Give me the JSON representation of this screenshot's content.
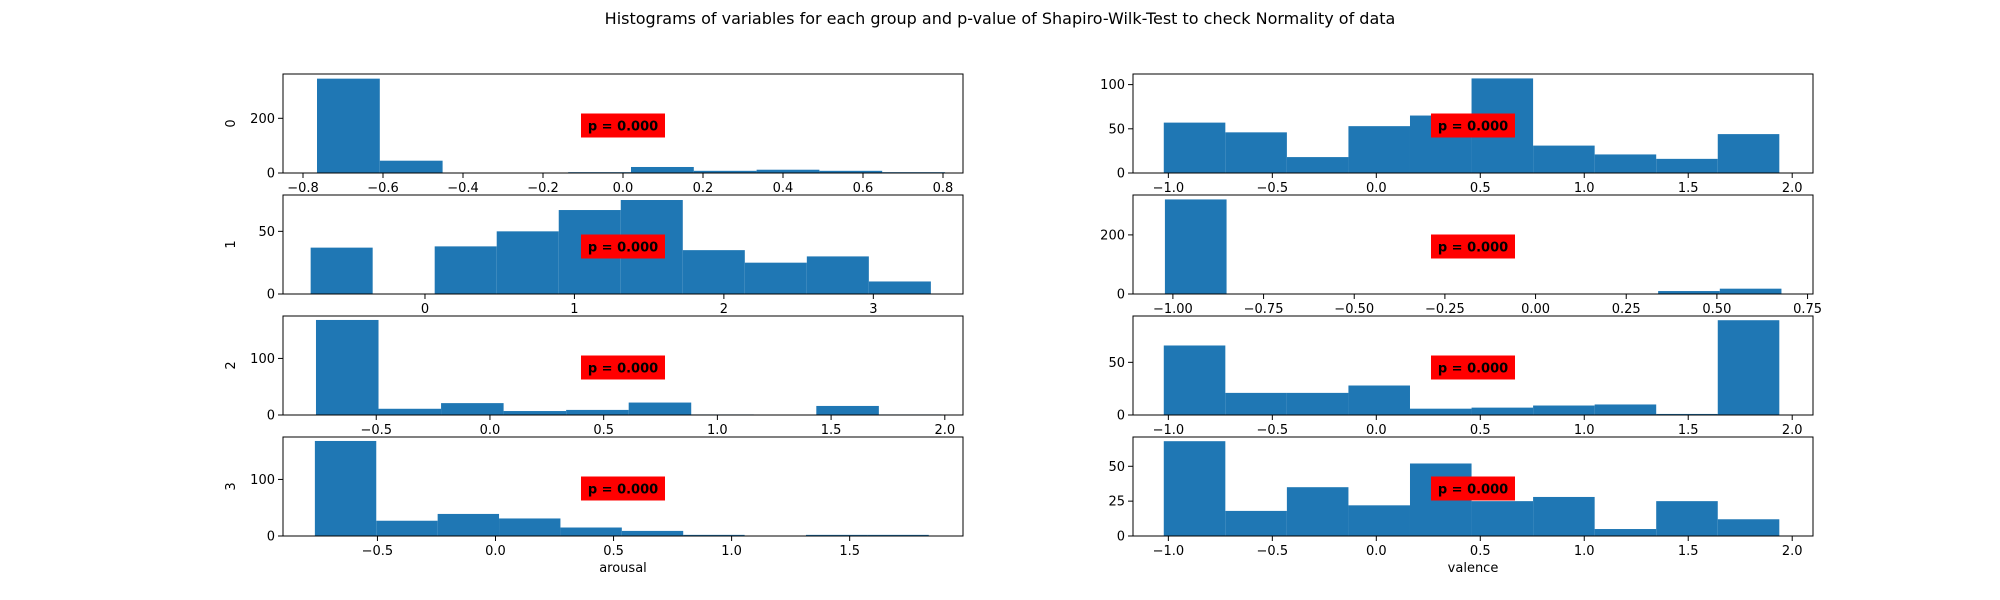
{
  "title": "Histograms of variables for each group and p-value of Shapiro-Wilk-Test to check Normality of data",
  "colors": {
    "bar": "#1f77b4",
    "annotation_bg": "#ff0000",
    "axis": "#000000"
  },
  "chart_data": [
    {
      "type": "bar",
      "row": 0,
      "col": 0,
      "ylabel": "0",
      "xlabel": "",
      "annotation": "p = 0.000",
      "xlim": [
        -0.85,
        0.85
      ],
      "ylim": [
        0,
        362
      ],
      "xticks": [
        -0.8,
        -0.6,
        -0.4,
        -0.2,
        0.0,
        0.2,
        0.4,
        0.6,
        0.8
      ],
      "xtick_labels": [
        "−0.8",
        "−0.6",
        "−0.4",
        "−0.2",
        "0.0",
        "0.2",
        "0.4",
        "0.6",
        "0.8"
      ],
      "yticks": [
        0,
        200
      ],
      "ytick_labels": [
        "0",
        "200"
      ],
      "bin_edges": [
        -0.765,
        -0.608,
        -0.451,
        -0.294,
        -0.137,
        0.02,
        0.177,
        0.334,
        0.491,
        0.648,
        0.805
      ],
      "values": [
        345,
        45,
        0,
        0,
        3,
        22,
        8,
        12,
        8,
        3
      ]
    },
    {
      "type": "bar",
      "row": 0,
      "col": 1,
      "ylabel": "",
      "xlabel": "",
      "annotation": "p = 0.000",
      "xlim": [
        -1.17,
        2.1
      ],
      "ylim": [
        0,
        112
      ],
      "xticks": [
        -1.0,
        -0.5,
        0.0,
        0.5,
        1.0,
        1.5,
        2.0
      ],
      "xtick_labels": [
        "−1.0",
        "−0.5",
        "0.0",
        "0.5",
        "1.0",
        "1.5",
        "2.0"
      ],
      "yticks": [
        0,
        50,
        100
      ],
      "ytick_labels": [
        "0",
        "50",
        "100"
      ],
      "bin_edges": [
        -1.022,
        -0.726,
        -0.43,
        -0.134,
        0.162,
        0.458,
        0.754,
        1.05,
        1.346,
        1.642,
        1.938
      ],
      "values": [
        57,
        46,
        18,
        53,
        65,
        107,
        31,
        21,
        16,
        44
      ]
    },
    {
      "type": "bar",
      "row": 1,
      "col": 0,
      "ylabel": "1",
      "xlabel": "",
      "annotation": "p = 0.000",
      "xlim": [
        -0.95,
        3.6
      ],
      "ylim": [
        0,
        79
      ],
      "xticks": [
        0,
        1,
        2,
        3
      ],
      "xtick_labels": [
        "0",
        "1",
        "2",
        "3"
      ],
      "yticks": [
        0,
        50
      ],
      "ytick_labels": [
        "0",
        "50"
      ],
      "bin_edges": [
        -0.765,
        -0.35,
        0.065,
        0.48,
        0.895,
        1.31,
        1.725,
        2.14,
        2.555,
        2.97,
        3.385
      ],
      "values": [
        37,
        0,
        38,
        50,
        67,
        75,
        35,
        25,
        30,
        10
      ]
    },
    {
      "type": "bar",
      "row": 1,
      "col": 1,
      "ylabel": "",
      "xlabel": "",
      "annotation": "p = 0.000",
      "xlim": [
        -1.11,
        0.765
      ],
      "ylim": [
        0,
        335
      ],
      "xticks": [
        -1.0,
        -0.75,
        -0.5,
        -0.25,
        0.0,
        0.25,
        0.5,
        0.75
      ],
      "xtick_labels": [
        "−1.00",
        "−0.75",
        "−0.50",
        "−0.25",
        "0.00",
        "0.25",
        "0.50",
        "0.75"
      ],
      "yticks": [
        0,
        200
      ],
      "ytick_labels": [
        "0",
        "200"
      ],
      "bin_edges": [
        -1.022,
        -0.852,
        -0.682,
        -0.512,
        -0.342,
        -0.172,
        -0.002,
        0.168,
        0.338,
        0.508,
        0.678
      ],
      "values": [
        320,
        0,
        0,
        0,
        0,
        0,
        0,
        0,
        10,
        18
      ]
    },
    {
      "type": "bar",
      "row": 2,
      "col": 0,
      "ylabel": "2",
      "xlabel": "",
      "annotation": "p = 0.000",
      "xlim": [
        -0.91,
        2.08
      ],
      "ylim": [
        0,
        175
      ],
      "xticks": [
        -0.5,
        0.0,
        0.5,
        1.0,
        1.5,
        2.0
      ],
      "xtick_labels": [
        "−0.5",
        "0.0",
        "0.5",
        "1.0",
        "1.5",
        "2.0"
      ],
      "yticks": [
        0,
        100
      ],
      "ytick_labels": [
        "0",
        "100"
      ],
      "bin_edges": [
        -0.765,
        -0.49,
        -0.215,
        0.06,
        0.335,
        0.61,
        0.885,
        1.16,
        1.435,
        1.71,
        1.985
      ],
      "values": [
        168,
        11,
        21,
        7,
        9,
        22,
        1,
        0,
        16,
        1
      ]
    },
    {
      "type": "bar",
      "row": 2,
      "col": 1,
      "ylabel": "",
      "xlabel": "",
      "annotation": "p = 0.000",
      "xlim": [
        -1.17,
        2.1
      ],
      "ylim": [
        0,
        94
      ],
      "xticks": [
        -1.0,
        -0.5,
        0.0,
        0.5,
        1.0,
        1.5,
        2.0
      ],
      "xtick_labels": [
        "−1.0",
        "−0.5",
        "0.0",
        "0.5",
        "1.0",
        "1.5",
        "2.0"
      ],
      "yticks": [
        0,
        50
      ],
      "ytick_labels": [
        "0",
        "50"
      ],
      "bin_edges": [
        -1.022,
        -0.726,
        -0.43,
        -0.134,
        0.162,
        0.458,
        0.754,
        1.05,
        1.346,
        1.642,
        1.938
      ],
      "values": [
        66,
        21,
        21,
        28,
        6,
        7,
        9,
        10,
        1,
        90
      ]
    },
    {
      "type": "bar",
      "row": 3,
      "col": 0,
      "ylabel": "3",
      "xlabel": "arousal",
      "annotation": "p = 0.000",
      "xlim": [
        -0.9,
        1.98
      ],
      "ylim": [
        0,
        175
      ],
      "xticks": [
        -0.5,
        0.0,
        0.5,
        1.0,
        1.5
      ],
      "xtick_labels": [
        "−0.5",
        "0.0",
        "0.5",
        "1.0",
        "1.5"
      ],
      "yticks": [
        0,
        100
      ],
      "ytick_labels": [
        "0",
        "100"
      ],
      "bin_edges": [
        -0.765,
        -0.505,
        -0.245,
        0.015,
        0.275,
        0.535,
        0.795,
        1.055,
        1.315,
        1.575,
        1.835
      ],
      "values": [
        168,
        27,
        39,
        31,
        15,
        9,
        2,
        0,
        2,
        2
      ]
    },
    {
      "type": "bar",
      "row": 3,
      "col": 1,
      "ylabel": "",
      "xlabel": "valence",
      "annotation": "p = 0.000",
      "xlim": [
        -1.17,
        2.1
      ],
      "ylim": [
        0,
        71
      ],
      "xticks": [
        -1.0,
        -0.5,
        0.0,
        0.5,
        1.0,
        1.5,
        2.0
      ],
      "xtick_labels": [
        "−1.0",
        "−0.5",
        "0.0",
        "0.5",
        "1.0",
        "1.5",
        "2.0"
      ],
      "yticks": [
        0,
        25,
        50
      ],
      "ytick_labels": [
        "0",
        "25",
        "50"
      ],
      "bin_edges": [
        -1.022,
        -0.726,
        -0.43,
        -0.134,
        0.162,
        0.458,
        0.754,
        1.05,
        1.346,
        1.642,
        1.938
      ],
      "values": [
        68,
        18,
        35,
        22,
        52,
        25,
        28,
        5,
        25,
        12
      ]
    }
  ]
}
